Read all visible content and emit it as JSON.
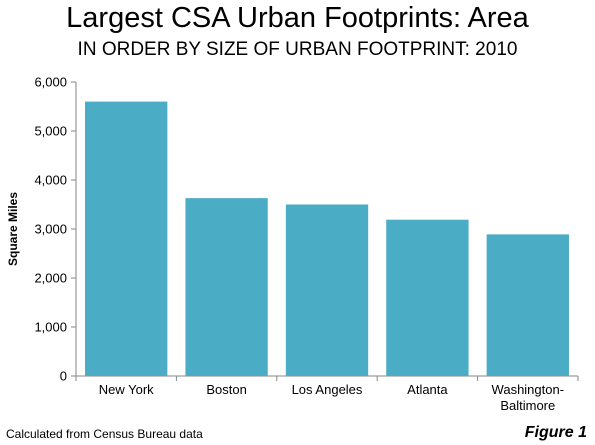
{
  "title": "Largest CSA Urban Footprints: Area",
  "subtitle": "IN ORDER BY SIZE OF URBAN FOOTPRINT: 2010",
  "source_note": "Calculated from Census Bureau data",
  "figure_label": "Figure 1",
  "colors": {
    "bar": "#4bacc6",
    "axis": "#868686"
  },
  "chart_data": {
    "type": "bar",
    "title": "Largest CSA Urban Footprints: Area",
    "subtitle": "IN ORDER BY SIZE OF URBAN FOOTPRINT: 2010",
    "xlabel": "",
    "ylabel": "Square Miles",
    "categories": [
      "New York",
      "Boston",
      "Los Angeles",
      "Atlanta",
      "Washington-\nBaltimore"
    ],
    "values": [
      5600,
      3630,
      3500,
      3190,
      2890
    ],
    "ylim": [
      0,
      6000
    ],
    "yticks": [
      0,
      1000,
      2000,
      3000,
      4000,
      5000,
      6000
    ],
    "ytick_labels": [
      "0",
      "1,000",
      "2,000",
      "3,000",
      "4,000",
      "5,000",
      "6,000"
    ],
    "grid": false,
    "legend": "none"
  }
}
